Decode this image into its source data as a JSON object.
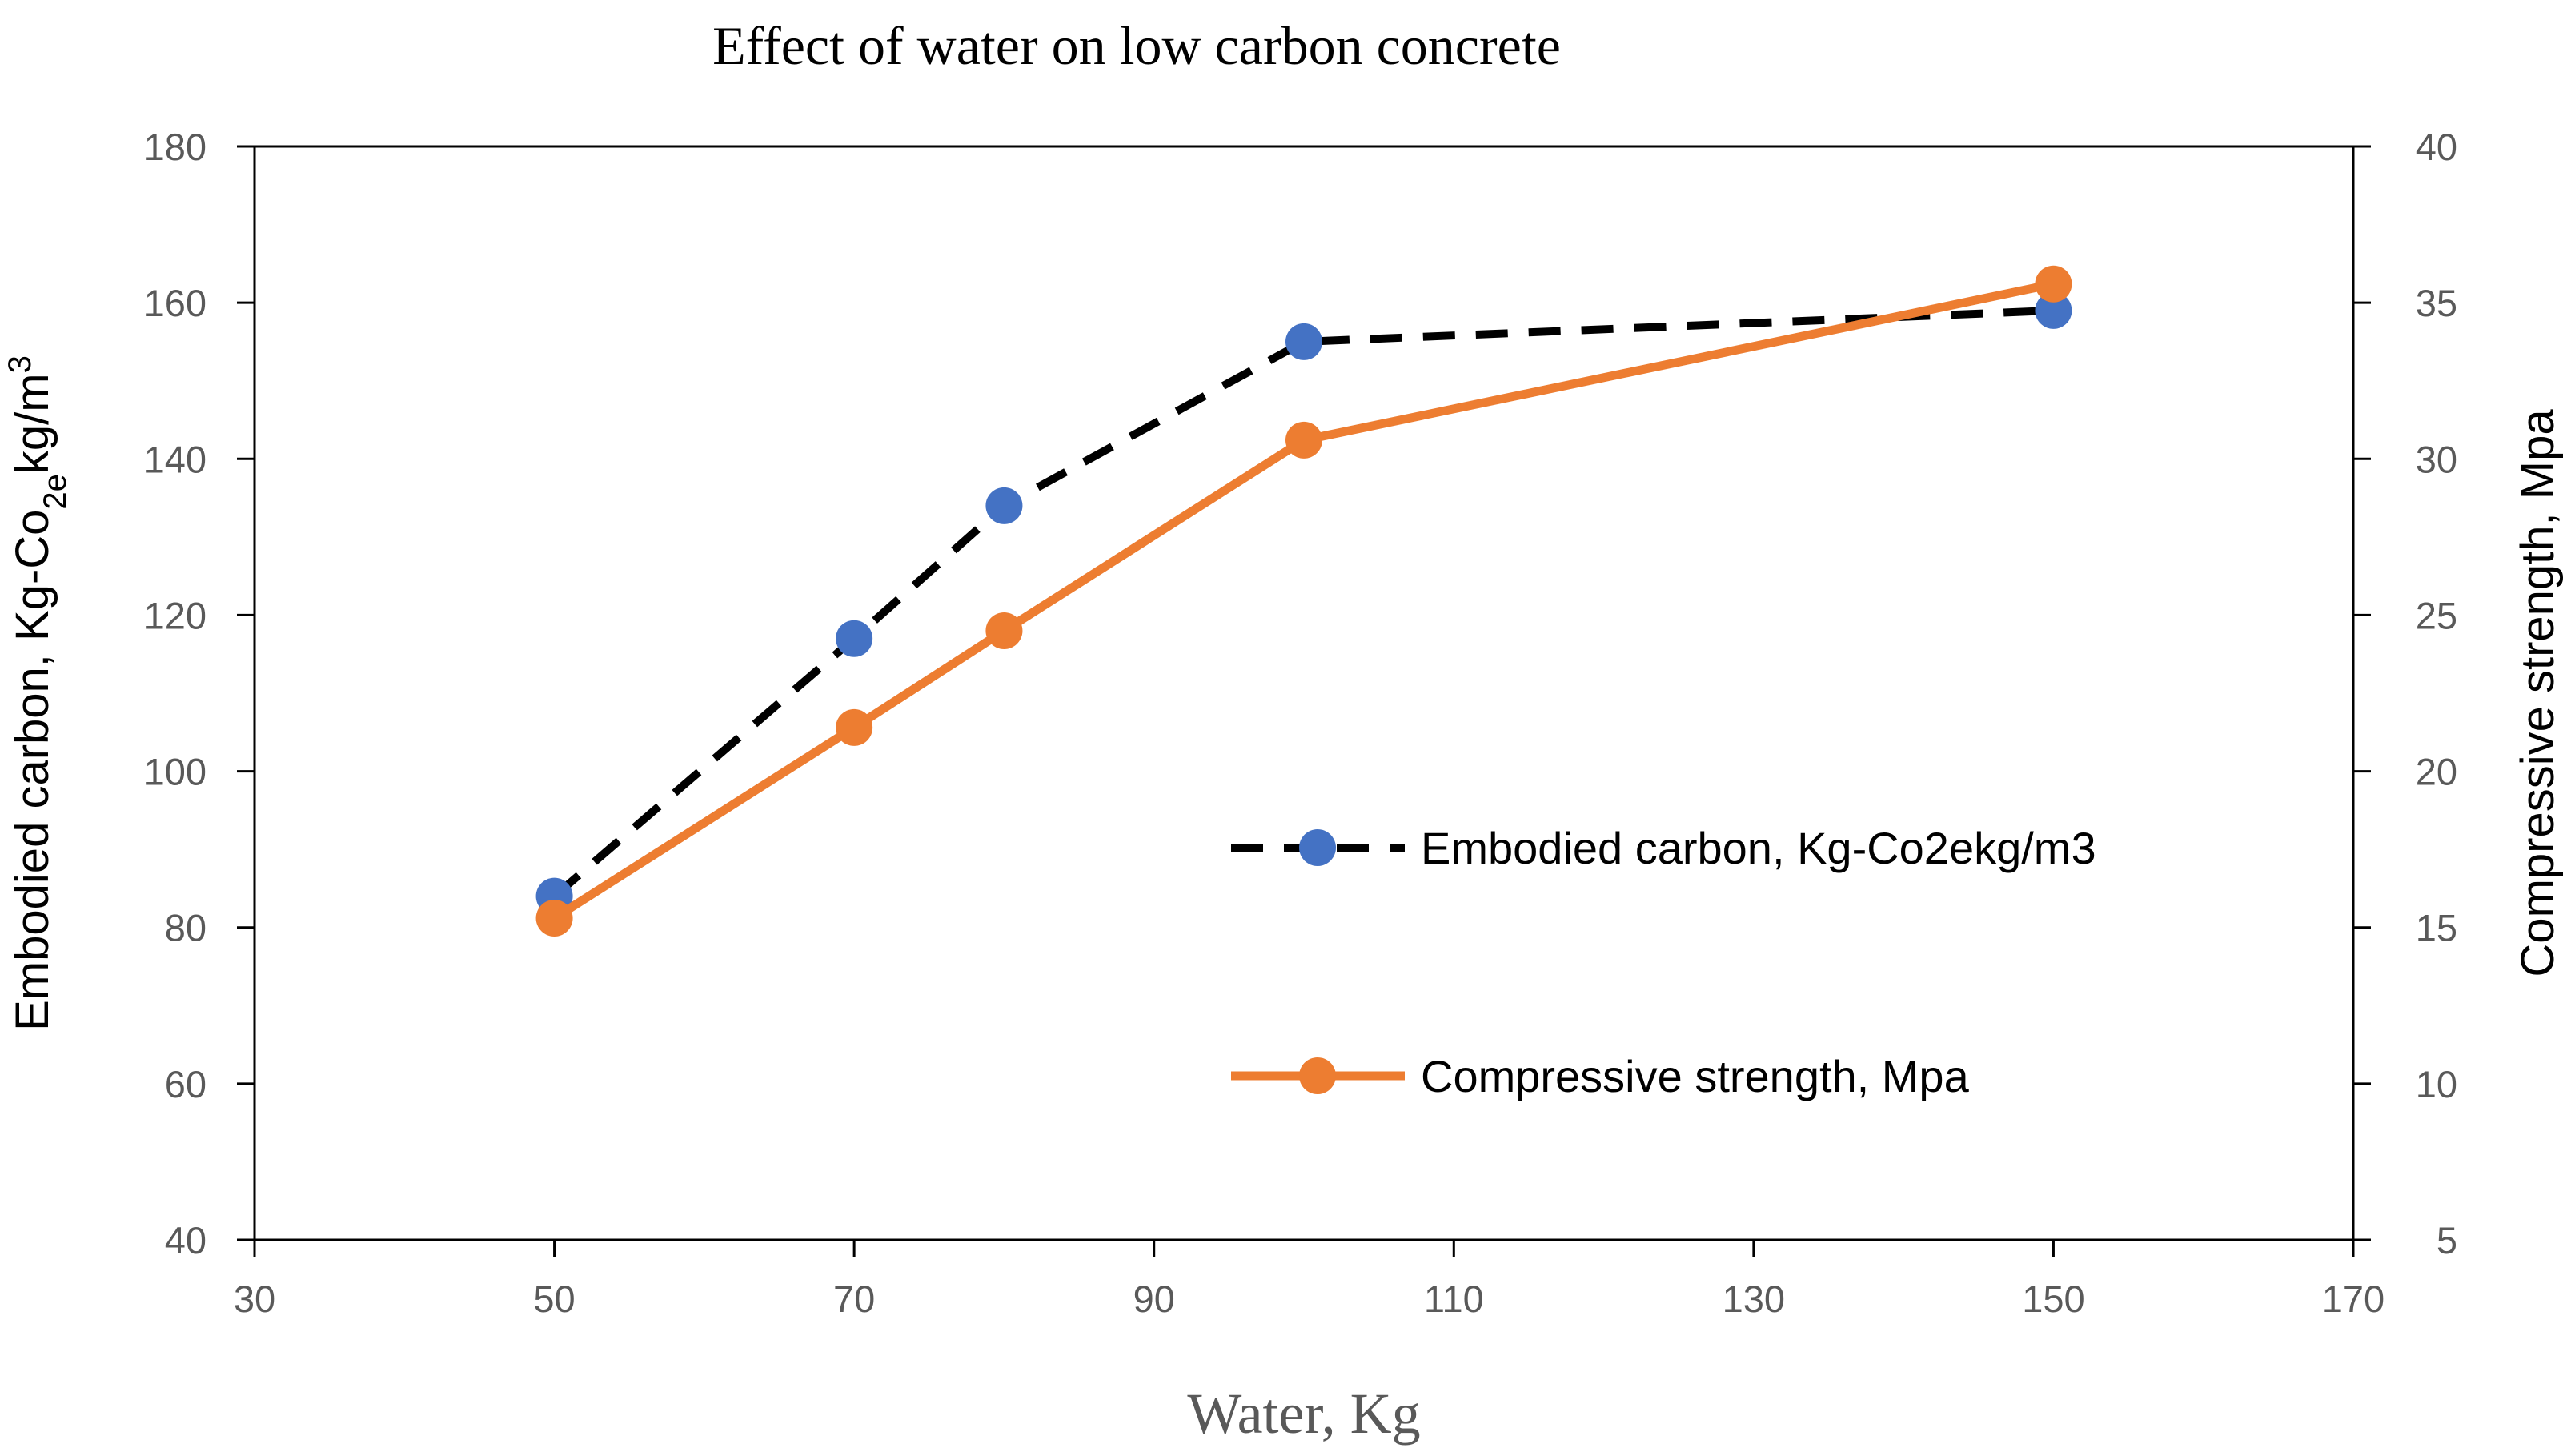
{
  "chart_data": {
    "type": "line",
    "title": "Effect of water on low carbon concrete",
    "xlabel": "Water, Kg",
    "ylabel_left": {
      "main": "Embodied carbon, Kg-Co",
      "sub": "2e",
      "tail": "kg/m",
      "sup": "3"
    },
    "ylabel_right": "Compressive strength, Mpa",
    "xlim": [
      30,
      170
    ],
    "ylim_left": [
      40,
      180
    ],
    "ylim_right": [
      5,
      40
    ],
    "xticks": [
      "30",
      "50",
      "70",
      "90",
      "110",
      "130",
      "150",
      "170"
    ],
    "yticks_left": [
      "40",
      "60",
      "80",
      "100",
      "120",
      "140",
      "160",
      "180"
    ],
    "yticks_right": [
      "5",
      "10",
      "15",
      "20",
      "25",
      "30",
      "35",
      "40"
    ],
    "grid": false,
    "legend_position": "center-right",
    "series": [
      {
        "name": "Embodied carbon, Kg-Co2ekg/m3",
        "axis": "left",
        "line_style": "dashed",
        "line_color": "#000000",
        "marker_color": "#4472C4",
        "x": [
          50,
          70,
          80,
          100,
          150
        ],
        "values": [
          84,
          117,
          134,
          155,
          159
        ]
      },
      {
        "name": "Compressive strength, Mpa",
        "axis": "right",
        "line_style": "solid",
        "line_color": "#ED7D31",
        "marker_color": "#ED7D31",
        "x": [
          50,
          70,
          80,
          100,
          150
        ],
        "values": [
          15.3,
          21.4,
          24.5,
          30.6,
          35.6
        ]
      }
    ]
  }
}
